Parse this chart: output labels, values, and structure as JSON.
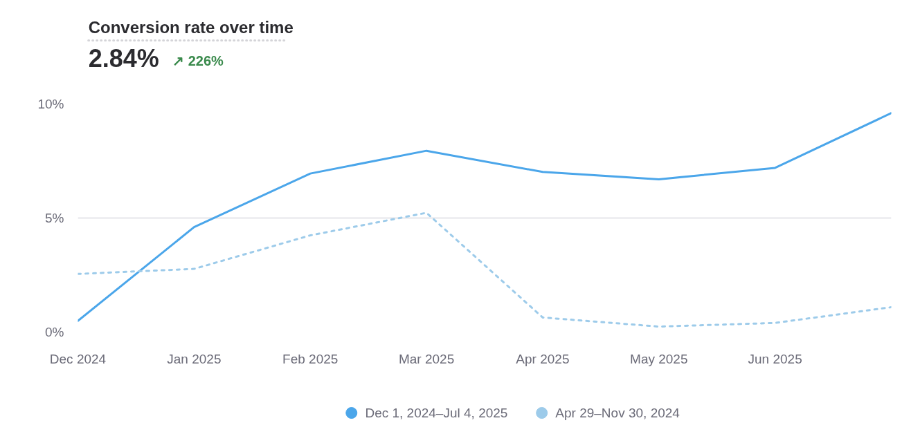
{
  "chart_data": {
    "type": "line",
    "title": "Conversion rate over time",
    "subtitle": "2.84%",
    "annotations": [
      "↗ 226%"
    ],
    "categories": [
      "Dec 2024",
      "Jan 2025",
      "Feb 2025",
      "Mar 2025",
      "Apr 2025",
      "May 2025",
      "Jun 2025",
      null
    ],
    "series": [
      {
        "name": "Dec 1, 2024–Jul 4, 2025",
        "color": "#4ba6ea",
        "line_style": "solid",
        "values": [
          0.49,
          4.6,
          6.95,
          7.95,
          7.02,
          6.7,
          7.2,
          9.6
        ]
      },
      {
        "name": "Apr 29–Nov 30, 2024",
        "color": "#9dcbea",
        "line_style": "dashed",
        "values": [
          2.55,
          2.77,
          4.24,
          5.23,
          0.64,
          0.24,
          0.4,
          1.09
        ]
      }
    ],
    "ylim": [
      0,
      10
    ],
    "yticks": [
      {
        "value": 0,
        "label": "0%"
      },
      {
        "value": 5,
        "label": "5%"
      },
      {
        "value": 10,
        "label": "10%"
      }
    ],
    "grid": "y",
    "legend": "bottom",
    "marker": "none"
  }
}
